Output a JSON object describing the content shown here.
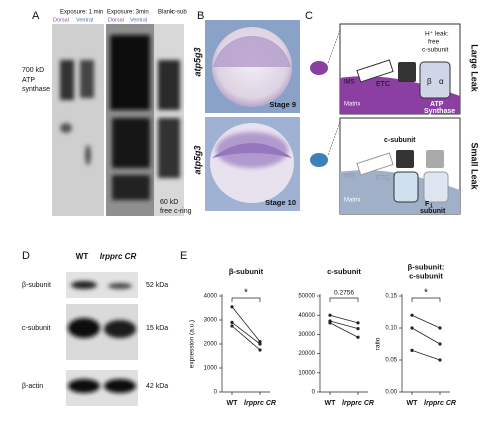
{
  "panel_a": {
    "label": "A",
    "exposures": [
      "Exposure: 1 min",
      "Exposure: 3min"
    ],
    "lanes": [
      "Dorsal",
      "Ventral",
      "Dorsal",
      "Ventral"
    ],
    "blank_label": "Blank",
    "csub_label": "c-sub",
    "marker_top": {
      "size": "700 kD",
      "name_lines": [
        "ATP",
        "synthase"
      ]
    },
    "marker_bottom": {
      "size": "60 kD",
      "name": "free c-ring"
    }
  },
  "panel_b": {
    "label": "B",
    "images": [
      {
        "probe": "atp5g3",
        "stage": "Stage 9"
      },
      {
        "probe": "atp5g3",
        "stage": "Stage 10"
      }
    ]
  },
  "panel_c": {
    "label": "C",
    "large": {
      "title": "Large Leak",
      "leak_lines": [
        "H⁺ leak:",
        "free",
        "c-subunit"
      ],
      "ims": "IMS",
      "etc": "ETC",
      "matrix": "Matrix",
      "enzyme_lines": [
        "ATP",
        "Synthase"
      ]
    },
    "small": {
      "title": "Small Leak",
      "c_subunit": "c-subunit",
      "ims": "IMS",
      "etc": "ETC",
      "matrix": "Matrix",
      "f1": "F",
      "f1_sub": "1",
      "subunit": "subunit"
    },
    "beta": "β",
    "alpha": "α"
  },
  "panel_d": {
    "label": "D",
    "lanes": [
      "WT",
      "lrpprc CR"
    ],
    "rows": [
      {
        "name": "β-subunit",
        "size": "52 kDa"
      },
      {
        "name": "c-subunit",
        "size": "15 kDa"
      },
      {
        "name": "β-actin",
        "size": "42 kDa"
      }
    ]
  },
  "panel_e_label": "E",
  "chart_data": [
    {
      "type": "line",
      "title": [
        "β-subunit"
      ],
      "ylabel": "expression (a.u.)",
      "categories": [
        "WT",
        "lrpprc CR"
      ],
      "series": [
        {
          "color": "#222222",
          "values": [
            3550,
            2100
          ]
        },
        {
          "color": "#222222",
          "values": [
            2900,
            2000
          ]
        },
        {
          "color": "#222222",
          "values": [
            2750,
            1750
          ]
        }
      ],
      "ylim": [
        0,
        4000
      ],
      "yticks": [
        0,
        1000,
        2000,
        3000,
        4000
      ],
      "annotation": "*"
    },
    {
      "type": "line",
      "title": [
        "c-subunit"
      ],
      "categories": [
        "WT",
        "lrpprc CR"
      ],
      "series": [
        {
          "color": "#222222",
          "values": [
            40000,
            36000
          ]
        },
        {
          "color": "#222222",
          "values": [
            37000,
            33000
          ]
        },
        {
          "color": "#222222",
          "values": [
            36000,
            28500
          ]
        }
      ],
      "ylim": [
        0,
        50000
      ],
      "yticks": [
        0,
        10000,
        20000,
        30000,
        40000,
        50000
      ],
      "annotation": "0.2756"
    },
    {
      "type": "line",
      "title": [
        "β-subunit:",
        "c-subunit"
      ],
      "ylabel": "ratio",
      "categories": [
        "WT",
        "lrpprc CR"
      ],
      "series": [
        {
          "color": "#222222",
          "values": [
            0.12,
            0.1
          ]
        },
        {
          "color": "#222222",
          "values": [
            0.1,
            0.075
          ]
        },
        {
          "color": "#222222",
          "values": [
            0.065,
            0.05
          ]
        }
      ],
      "ylim": [
        0,
        0.15
      ],
      "yticks": [
        {
          "value": 0,
          "label": "0.00"
        },
        {
          "value": 0.05,
          "label": "0.05"
        },
        {
          "value": 0.1,
          "label": "0.10"
        },
        {
          "value": 0.15,
          "label": "0.15"
        }
      ],
      "annotation": "*"
    }
  ]
}
